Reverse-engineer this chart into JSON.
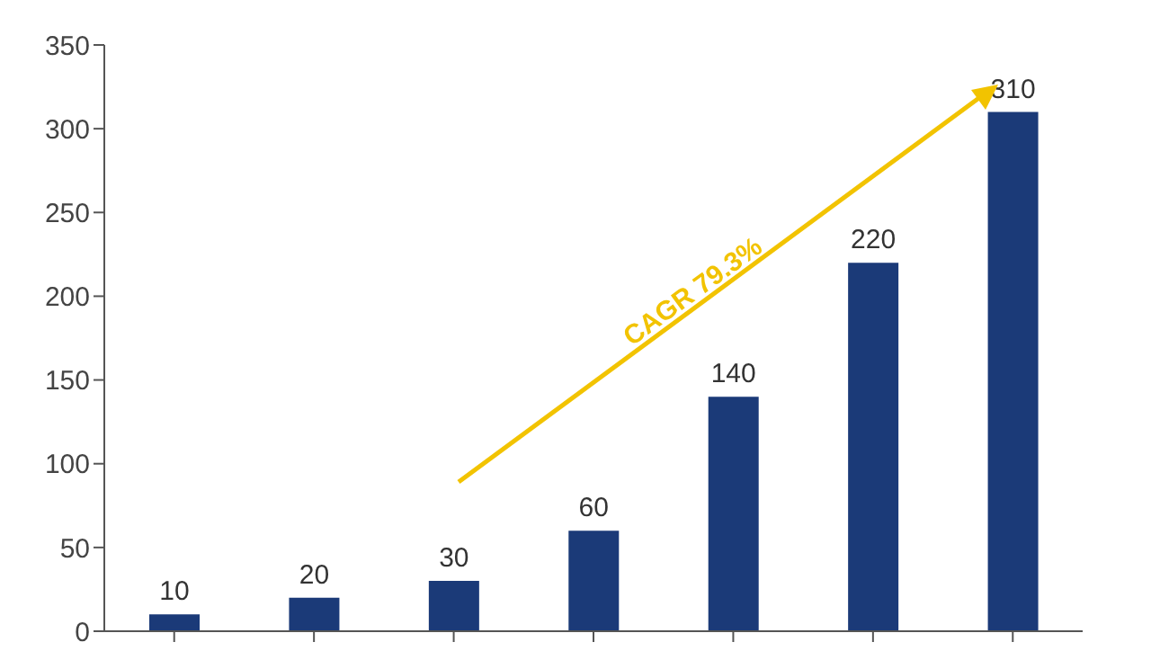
{
  "chart_data": {
    "type": "bar",
    "categories": [
      null,
      null,
      null,
      null,
      null,
      null,
      null
    ],
    "values": [
      10,
      20,
      30,
      60,
      140,
      220,
      310
    ],
    "color": "#1b3a78",
    "ylim": [
      0,
      350
    ],
    "yticks": [
      0,
      50,
      100,
      150,
      200,
      250,
      300,
      350
    ],
    "grid": false,
    "data_labels": true,
    "annotations": [
      "CAGR 79.3%"
    ]
  }
}
